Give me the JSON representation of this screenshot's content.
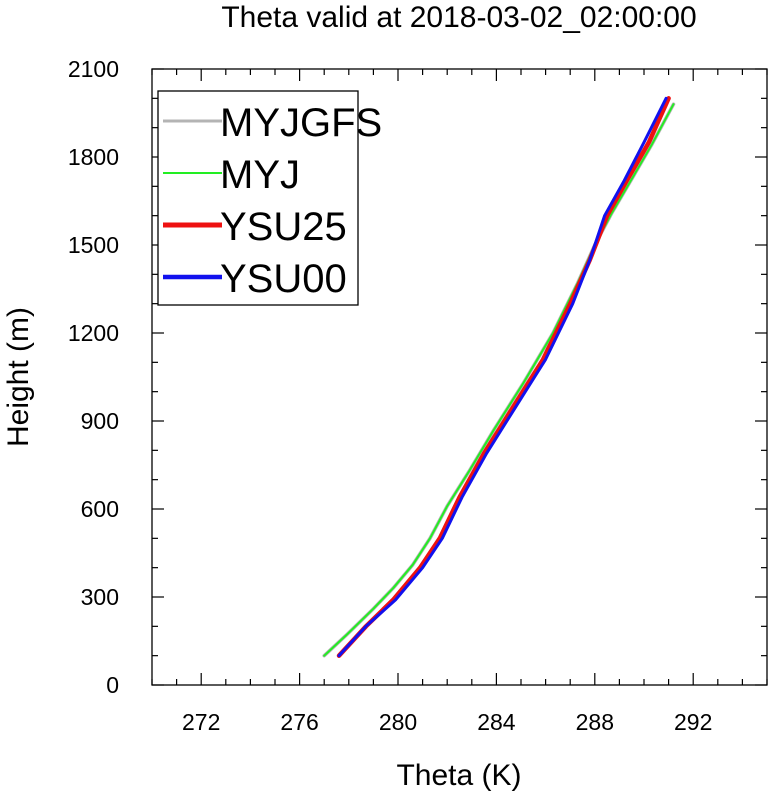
{
  "chart_data": {
    "type": "line",
    "title": "Theta valid at 2018-03-02_02:00:00",
    "xlabel": "Theta (K)",
    "ylabel": "Height (m)",
    "xlim": [
      270,
      295
    ],
    "ylim": [
      0,
      2100
    ],
    "x_ticks": [
      272,
      276,
      280,
      284,
      288,
      292
    ],
    "y_ticks": [
      0,
      300,
      600,
      900,
      1200,
      1500,
      1800,
      2100
    ],
    "x_minor_step": 1,
    "y_minor_step": 100,
    "grid": false,
    "legend_position": "top-left",
    "series": [
      {
        "name": "MYJGFS",
        "color": "#b4b4b4",
        "points": [
          [
            277.0,
            100
          ],
          [
            277.9,
            170
          ],
          [
            279.0,
            260
          ],
          [
            279.8,
            330
          ],
          [
            280.6,
            410
          ],
          [
            281.3,
            500
          ],
          [
            282.0,
            610
          ],
          [
            282.9,
            730
          ],
          [
            283.9,
            870
          ],
          [
            285.1,
            1030
          ],
          [
            286.3,
            1200
          ],
          [
            287.3,
            1370
          ],
          [
            288.0,
            1500
          ],
          [
            288.7,
            1610
          ],
          [
            289.4,
            1710
          ],
          [
            290.3,
            1840
          ],
          [
            291.2,
            1980
          ]
        ]
      },
      {
        "name": "MYJ",
        "color": "#22ee22",
        "points": [
          [
            277.0,
            100
          ],
          [
            277.9,
            170
          ],
          [
            279.0,
            260
          ],
          [
            279.8,
            330
          ],
          [
            280.6,
            410
          ],
          [
            281.3,
            500
          ],
          [
            282.0,
            610
          ],
          [
            282.9,
            730
          ],
          [
            283.9,
            870
          ],
          [
            285.1,
            1030
          ],
          [
            286.3,
            1200
          ],
          [
            287.3,
            1370
          ],
          [
            288.0,
            1500
          ],
          [
            288.7,
            1610
          ],
          [
            289.4,
            1710
          ],
          [
            290.3,
            1840
          ],
          [
            291.2,
            1980
          ]
        ]
      },
      {
        "name": "YSU25",
        "color": "#ee1111",
        "points": [
          [
            277.6,
            100
          ],
          [
            278.7,
            200
          ],
          [
            279.8,
            290
          ],
          [
            280.9,
            400
          ],
          [
            281.7,
            500
          ],
          [
            282.5,
            640
          ],
          [
            283.5,
            790
          ],
          [
            284.7,
            950
          ],
          [
            285.9,
            1110
          ],
          [
            287.0,
            1300
          ],
          [
            287.8,
            1450
          ],
          [
            288.5,
            1600
          ],
          [
            289.3,
            1720
          ],
          [
            290.2,
            1850
          ],
          [
            291.0,
            2000
          ]
        ]
      },
      {
        "name": "YSU00",
        "color": "#1111ee",
        "points": [
          [
            277.6,
            100
          ],
          [
            278.7,
            200
          ],
          [
            279.9,
            290
          ],
          [
            281.0,
            400
          ],
          [
            281.8,
            500
          ],
          [
            282.6,
            640
          ],
          [
            283.6,
            790
          ],
          [
            284.8,
            950
          ],
          [
            286.0,
            1110
          ],
          [
            287.1,
            1300
          ],
          [
            287.8,
            1450
          ],
          [
            288.4,
            1600
          ],
          [
            289.2,
            1720
          ],
          [
            290.0,
            1850
          ],
          [
            290.9,
            2000
          ]
        ]
      }
    ]
  }
}
